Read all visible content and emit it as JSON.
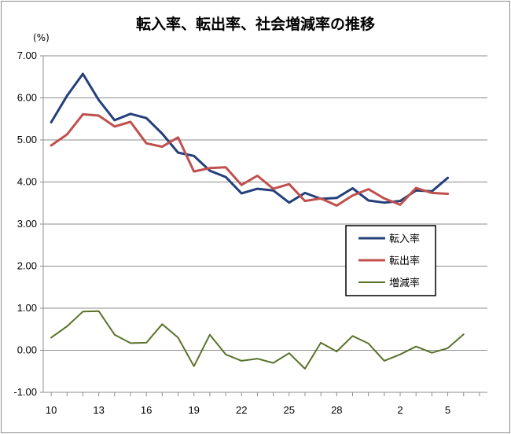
{
  "chart_data": {
    "type": "line",
    "title": "転入率、転出率、社会増減率の推移",
    "y_unit": "(%)",
    "ylim": [
      -1.0,
      7.0
    ],
    "yticks": [
      "-1.00",
      "0.00",
      "1.00",
      "2.00",
      "3.00",
      "4.00",
      "5.00",
      "6.00",
      "7.00"
    ],
    "x": [
      "10",
      "11",
      "12",
      "13",
      "14",
      "15",
      "16",
      "17",
      "18",
      "19",
      "20",
      "21",
      "22",
      "23",
      "24",
      "25",
      "26",
      "27",
      "28",
      "29",
      "30",
      "1",
      "2",
      "3",
      "4",
      "5",
      "6",
      "7"
    ],
    "x_tick_labels": [
      "10",
      "13",
      "16",
      "19",
      "22",
      "25",
      "28",
      "2",
      "5"
    ],
    "grid": true,
    "legend_position": "right",
    "series": [
      {
        "name": "転入率",
        "color": "#243f7a",
        "values": [
          5.42,
          6.05,
          6.57,
          5.95,
          5.47,
          5.62,
          5.52,
          5.15,
          4.7,
          4.62,
          4.27,
          4.12,
          3.73,
          3.84,
          3.8,
          3.51,
          3.74,
          3.6,
          3.62,
          3.85,
          3.56,
          3.51,
          3.55,
          3.8,
          3.78,
          4.1,
          null,
          null
        ]
      },
      {
        "name": "転出率",
        "color": "#c0504d",
        "values": [
          4.87,
          5.13,
          5.61,
          5.58,
          5.32,
          5.43,
          4.92,
          4.84,
          5.06,
          4.25,
          4.33,
          4.35,
          3.93,
          4.15,
          3.84,
          3.95,
          3.55,
          3.61,
          3.44,
          3.68,
          3.83,
          3.61,
          3.46,
          3.86,
          3.74,
          3.72,
          null,
          null
        ]
      },
      {
        "name": "増減率",
        "color": "#5a7229",
        "values": [
          0.3,
          0.57,
          0.92,
          0.93,
          0.37,
          0.17,
          0.18,
          0.62,
          0.3,
          -0.38,
          0.37,
          -0.1,
          -0.25,
          -0.2,
          -0.3,
          -0.07,
          -0.44,
          0.18,
          -0.03,
          0.34,
          0.16,
          -0.25,
          -0.1,
          0.09,
          -0.06,
          0.05,
          0.38,
          null
        ]
      }
    ]
  }
}
